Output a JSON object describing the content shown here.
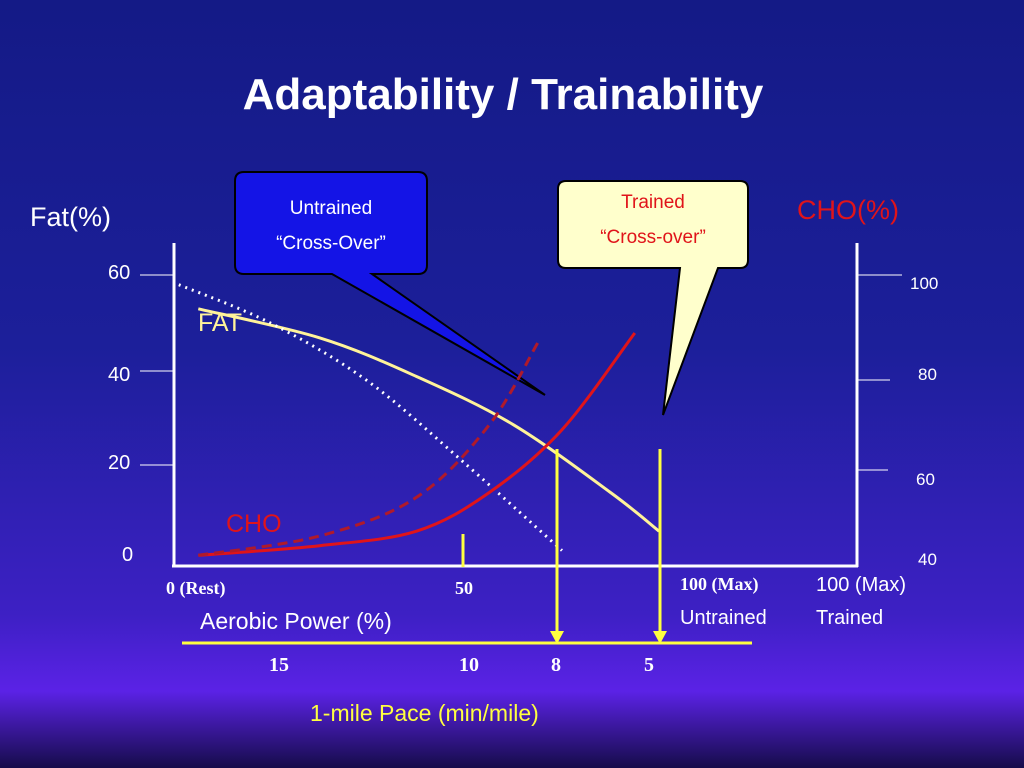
{
  "title": "Adaptability / Trainability",
  "colors": {
    "fat": "#fff39a",
    "cho": "#e0141a",
    "untrained_box": "#1414e6",
    "trained_box": "#ffffcc",
    "pace_axis": "#ffff40"
  },
  "left_axis": {
    "label": "Fat(%)",
    "ticks": [
      "60",
      "40",
      "20",
      "0"
    ]
  },
  "right_axis": {
    "label": "CHO(%)",
    "ticks": [
      "100",
      "80",
      "60",
      "40"
    ]
  },
  "x_axis": {
    "label": "Aerobic Power (%)",
    "ticks": {
      "rest": "0 (Rest)",
      "mid": "50",
      "untrained_max": "100 (Max)",
      "trained_max": "100 (Max)"
    },
    "untrained": "Untrained",
    "trained": "Trained"
  },
  "pace_axis": {
    "label": "1-mile Pace (min/mile)",
    "ticks": [
      "15",
      "10",
      "8",
      "5"
    ]
  },
  "series_labels": {
    "fat": "FAT",
    "cho": "CHO"
  },
  "callouts": {
    "untrained": {
      "line1": "Untrained",
      "line2": "“Cross-Over”"
    },
    "trained": {
      "line1": "Trained",
      "line2": "“Cross-over”"
    }
  },
  "chart_data": {
    "type": "line",
    "xlabel": "Aerobic Power (%)",
    "ylabel": "Fat(%)",
    "y2label": "CHO(%)",
    "xlim": [
      0,
      100
    ],
    "ylim": [
      0,
      60
    ],
    "y2lim": [
      40,
      100
    ],
    "series": [
      {
        "name": "FAT",
        "axis": "left",
        "style": "solid",
        "color": "#fff39a",
        "points": [
          [
            5,
            53
          ],
          [
            30,
            47
          ],
          [
            50,
            39
          ],
          [
            70,
            29
          ],
          [
            90,
            15
          ],
          [
            100,
            7
          ]
        ]
      },
      {
        "style": "dotted",
        "axis": "left",
        "color": "#ffffff",
        "points": [
          [
            1,
            58
          ],
          [
            20,
            50
          ],
          [
            40,
            38
          ],
          [
            60,
            21
          ],
          [
            80,
            3
          ]
        ]
      },
      {
        "name": "CHO",
        "axis": "right",
        "style": "solid",
        "color": "#e0141a",
        "points": [
          [
            5,
            42
          ],
          [
            30,
            44
          ],
          [
            50,
            47
          ],
          [
            65,
            55
          ],
          [
            80,
            68
          ],
          [
            95,
            88
          ]
        ]
      },
      {
        "style": "dashed",
        "axis": "right",
        "color": "#b01a2a",
        "points": [
          [
            5,
            42
          ],
          [
            30,
            46
          ],
          [
            50,
            54
          ],
          [
            65,
            69
          ],
          [
            75,
            86
          ]
        ]
      }
    ],
    "markers": {
      "untrained_crossover": 60,
      "trained_crossover": 80,
      "mid": 50
    }
  }
}
